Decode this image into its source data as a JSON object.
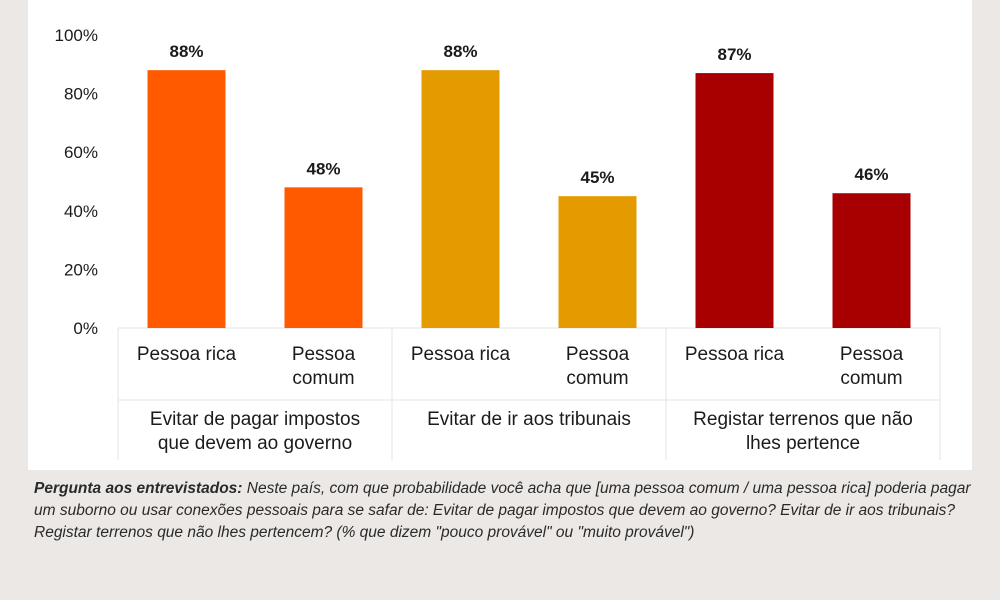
{
  "chart_data": {
    "type": "bar",
    "ylim": [
      0,
      100
    ],
    "yticks": [
      "0%",
      "20%",
      "40%",
      "60%",
      "80%",
      "100%"
    ],
    "grid": false,
    "groups": [
      {
        "label_lines": [
          "Evitar de  pagar impostos",
          "que devem ao governo"
        ],
        "color": "#ff5a00",
        "bars": [
          {
            "category_lines": [
              "Pessoa rica"
            ],
            "value": 88,
            "label": "88%"
          },
          {
            "category_lines": [
              "Pessoa",
              "comum"
            ],
            "value": 48,
            "label": "48%"
          }
        ]
      },
      {
        "label_lines": [
          "Evitar de ir aos tribunais"
        ],
        "color": "#e49b00",
        "bars": [
          {
            "category_lines": [
              "Pessoa rica"
            ],
            "value": 88,
            "label": "88%"
          },
          {
            "category_lines": [
              "Pessoa",
              "comum"
            ],
            "value": 45,
            "label": "45%"
          }
        ]
      },
      {
        "label_lines": [
          "Registar terrenos que não",
          "lhes pertence"
        ],
        "color": "#a80000",
        "bars": [
          {
            "category_lines": [
              "Pessoa rica"
            ],
            "value": 87,
            "label": "87%"
          },
          {
            "category_lines": [
              "Pessoa",
              "comum"
            ],
            "value": 46,
            "label": "46%"
          }
        ]
      }
    ]
  },
  "footnote": {
    "lead": "Pergunta aos entrevistados:",
    "text": " Neste país, com que probabilidade você acha que [uma pessoa comum / uma pessoa rica] poderia pagar um suborno ou usar conexões pessoais para se safar de: Evitar de pagar impostos que devem ao governo? Evitar de ir aos tribunais? Registar terrenos que não lhes pertencem? (% que dizem \"pouco provável\" ou \"muito provável\")"
  }
}
